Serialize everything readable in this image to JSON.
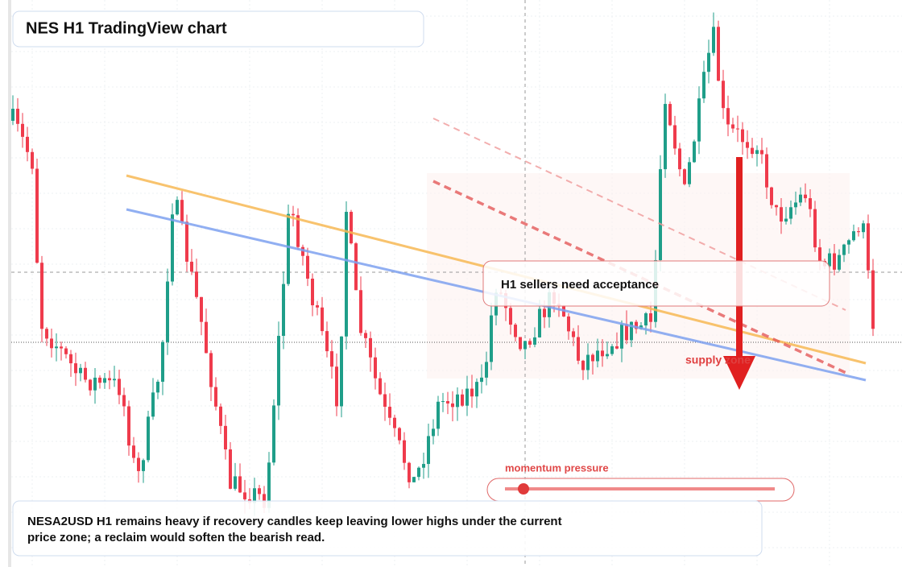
{
  "header": {
    "title": "NES H1 TradingView chart"
  },
  "annotations": {
    "callout": "H1 sellers need acceptance",
    "zone_label": "supply zone"
  },
  "momentum": {
    "label": "momentum pressure"
  },
  "caption": {
    "lines": [
      "NESA2USD H1 remains heavy if recovery candles keep leaving lower highs under the current",
      "price zone; a reclaim would soften the bearish read."
    ]
  }
}
